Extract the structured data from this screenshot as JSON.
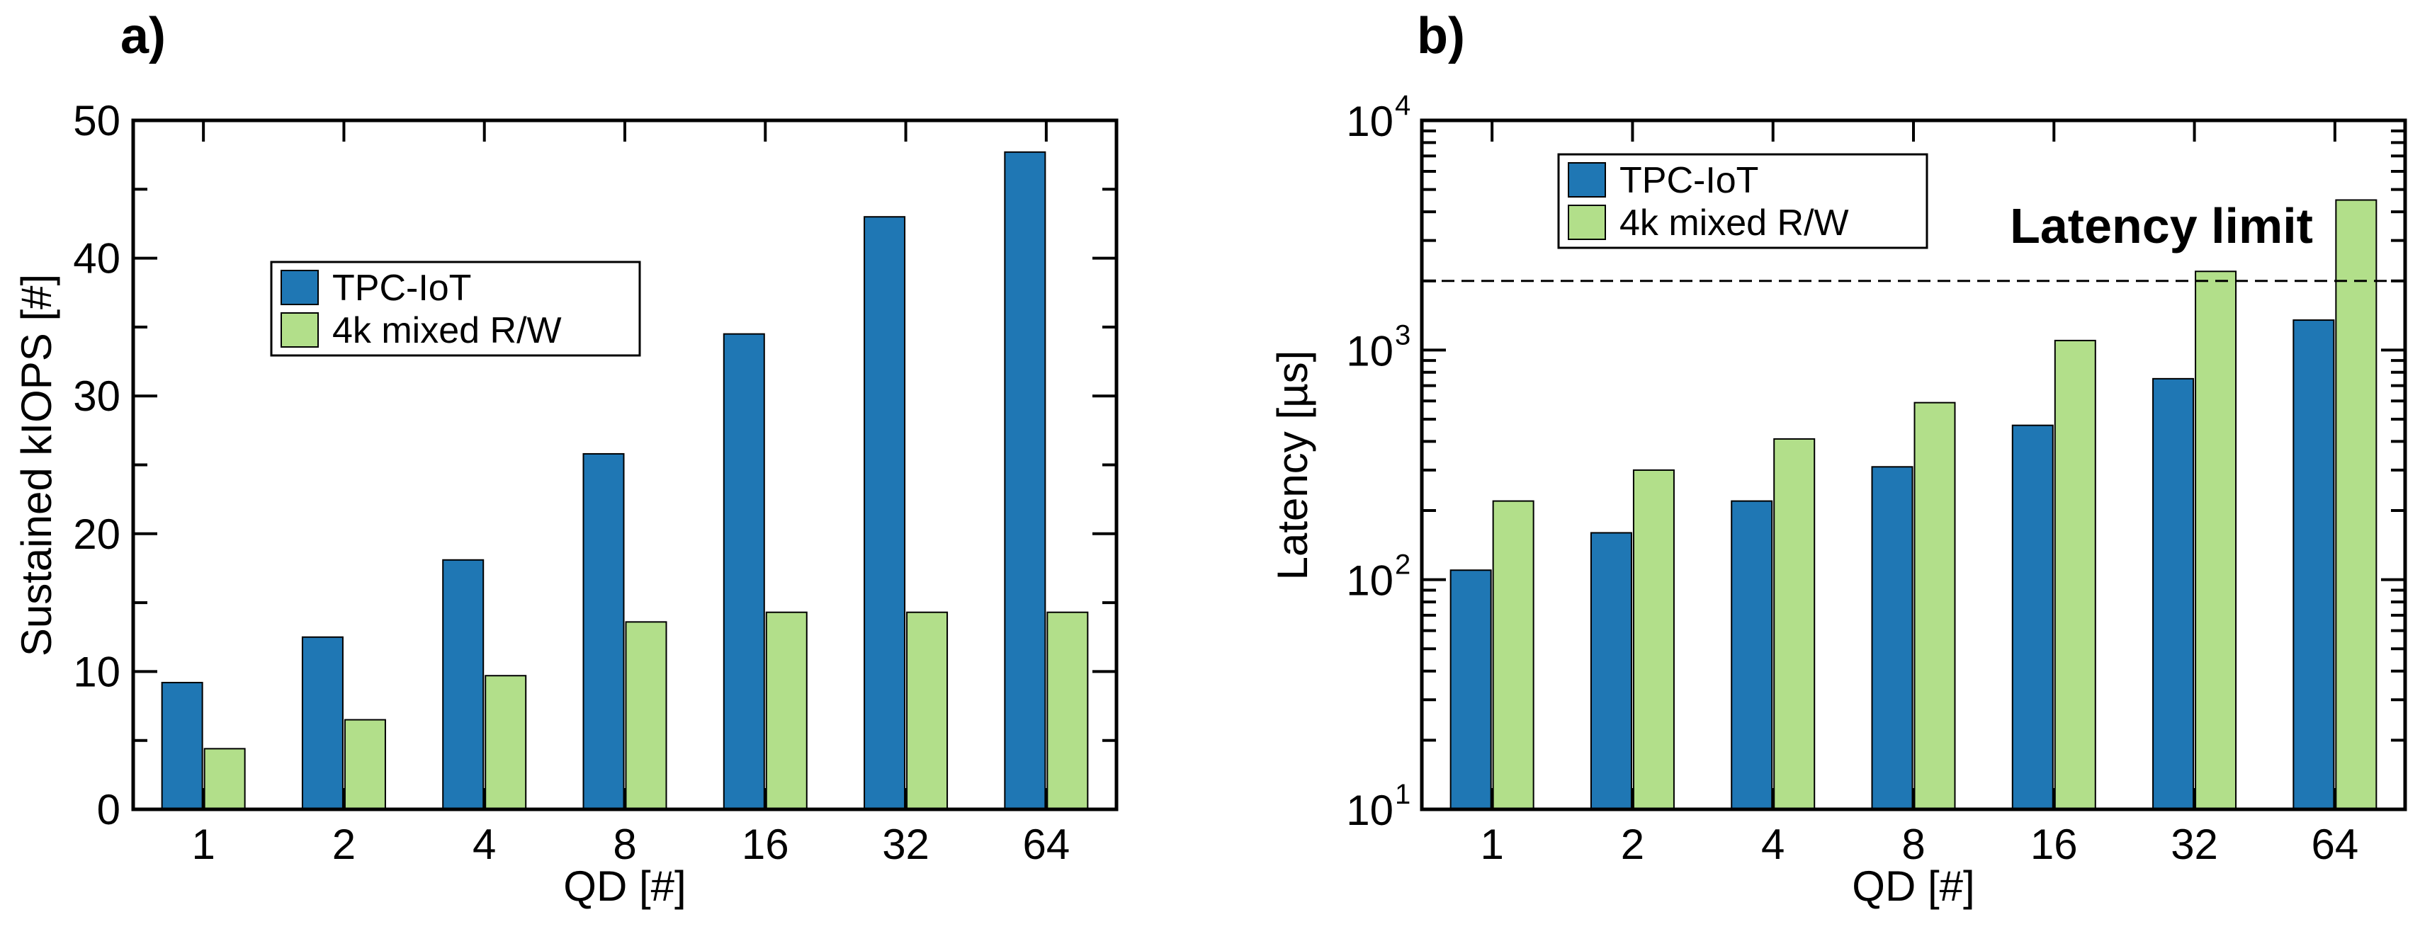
{
  "chart_data": [
    {
      "type": "bar",
      "panel_label": "a)",
      "categories": [
        "1",
        "2",
        "4",
        "8",
        "16",
        "32",
        "64"
      ],
      "series": [
        {
          "name": "TPC-IoT",
          "values": [
            9.2,
            12.5,
            18.1,
            25.8,
            34.5,
            43.0,
            47.7
          ],
          "color": "#1f77b4"
        },
        {
          "name": "4k mixed R/W",
          "values": [
            4.4,
            6.5,
            9.7,
            13.6,
            14.3,
            14.3,
            14.3
          ],
          "color": "#b2df8a"
        }
      ],
      "xlabel": "QD [#]",
      "ylabel": "Sustained kIOPS [#]",
      "ylim": [
        0,
        50
      ],
      "yticks": [
        "0",
        "10",
        "20",
        "30",
        "40",
        "50"
      ],
      "yscale": "linear",
      "legend_location": "upper-left"
    },
    {
      "type": "bar",
      "panel_label": "b)",
      "categories": [
        "1",
        "2",
        "4",
        "8",
        "16",
        "32",
        "64"
      ],
      "series": [
        {
          "name": "TPC-IoT",
          "values": [
            110,
            160,
            220,
            310,
            470,
            750,
            1350
          ],
          "color": "#1f77b4"
        },
        {
          "name": "4k mixed R/W",
          "values": [
            220,
            300,
            410,
            590,
            1100,
            2200,
            4500
          ],
          "color": "#b2df8a"
        }
      ],
      "xlabel": "QD [#]",
      "ylabel": "Latency [µs]",
      "ylim": [
        10,
        10000
      ],
      "yticks": [
        {
          "base": "10",
          "exp": "1"
        },
        {
          "base": "10",
          "exp": "2"
        },
        {
          "base": "10",
          "exp": "3"
        },
        {
          "base": "10",
          "exp": "4"
        }
      ],
      "yscale": "log",
      "reference_line": {
        "value": 2000,
        "label": "Latency limit",
        "style": "dashed"
      },
      "legend_location": "upper-left"
    }
  ]
}
